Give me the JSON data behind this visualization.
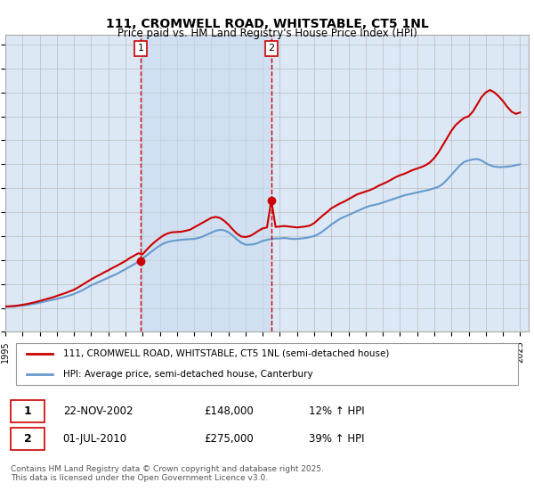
{
  "title": "111, CROMWELL ROAD, WHITSTABLE, CT5 1NL",
  "subtitle": "Price paid vs. HM Land Registry's House Price Index (HPI)",
  "ylim": [
    0,
    620000
  ],
  "yticks": [
    0,
    50000,
    100000,
    150000,
    200000,
    250000,
    300000,
    350000,
    400000,
    450000,
    500000,
    550000,
    600000
  ],
  "xlim_start": 1995.0,
  "xlim_end": 2025.5,
  "background_color": "#ffffff",
  "plot_bg_color": "#dce8f5",
  "grid_color": "#bbbbbb",
  "red_line_color": "#cc0000",
  "blue_line_color": "#6699cc",
  "vline1_x": 2002.896,
  "vline2_x": 2010.496,
  "vline_color": "#cc0000",
  "shade_color": "#c8dcf0",
  "transaction1_date": "22-NOV-2002",
  "transaction1_price": 148000,
  "transaction1_hpi": "12% ↑ HPI",
  "transaction2_date": "01-JUL-2010",
  "transaction2_price": 275000,
  "transaction2_hpi": "39% ↑ HPI",
  "legend_line1": "111, CROMWELL ROAD, WHITSTABLE, CT5 1NL (semi-detached house)",
  "legend_line2": "HPI: Average price, semi-detached house, Canterbury",
  "footer": "Contains HM Land Registry data © Crown copyright and database right 2025.\nThis data is licensed under the Open Government Licence v3.0.",
  "hpi_years": [
    1995.0,
    1995.25,
    1995.5,
    1995.75,
    1996.0,
    1996.25,
    1996.5,
    1996.75,
    1997.0,
    1997.25,
    1997.5,
    1997.75,
    1998.0,
    1998.25,
    1998.5,
    1998.75,
    1999.0,
    1999.25,
    1999.5,
    1999.75,
    2000.0,
    2000.25,
    2000.5,
    2000.75,
    2001.0,
    2001.25,
    2001.5,
    2001.75,
    2002.0,
    2002.25,
    2002.5,
    2002.75,
    2003.0,
    2003.25,
    2003.5,
    2003.75,
    2004.0,
    2004.25,
    2004.5,
    2004.75,
    2005.0,
    2005.25,
    2005.5,
    2005.75,
    2006.0,
    2006.25,
    2006.5,
    2006.75,
    2007.0,
    2007.25,
    2007.5,
    2007.75,
    2008.0,
    2008.25,
    2008.5,
    2008.75,
    2009.0,
    2009.25,
    2009.5,
    2009.75,
    2010.0,
    2010.25,
    2010.5,
    2010.75,
    2011.0,
    2011.25,
    2011.5,
    2011.75,
    2012.0,
    2012.25,
    2012.5,
    2012.75,
    2013.0,
    2013.25,
    2013.5,
    2013.75,
    2014.0,
    2014.25,
    2014.5,
    2014.75,
    2015.0,
    2015.25,
    2015.5,
    2015.75,
    2016.0,
    2016.25,
    2016.5,
    2016.75,
    2017.0,
    2017.25,
    2017.5,
    2017.75,
    2018.0,
    2018.25,
    2018.5,
    2018.75,
    2019.0,
    2019.25,
    2019.5,
    2019.75,
    2020.0,
    2020.25,
    2020.5,
    2020.75,
    2021.0,
    2021.25,
    2021.5,
    2021.75,
    2022.0,
    2022.25,
    2022.5,
    2022.75,
    2023.0,
    2023.25,
    2023.5,
    2023.75,
    2024.0,
    2024.25,
    2024.5,
    2024.75,
    2025.0
  ],
  "hpi_values": [
    52000,
    52500,
    53000,
    54000,
    55000,
    56000,
    57500,
    59000,
    61000,
    63000,
    65000,
    67000,
    69000,
    71000,
    73500,
    76000,
    79000,
    83000,
    87000,
    92000,
    97000,
    101000,
    105000,
    109000,
    113000,
    117000,
    121000,
    126000,
    131000,
    136000,
    141000,
    146000,
    153000,
    160000,
    167000,
    174000,
    180000,
    185000,
    188000,
    190000,
    191000,
    192000,
    193000,
    193500,
    194000,
    196000,
    199000,
    203000,
    207000,
    211000,
    213000,
    212000,
    208000,
    201000,
    193000,
    186000,
    182000,
    182000,
    183000,
    186000,
    190000,
    192000,
    194000,
    195000,
    195000,
    196000,
    195000,
    194000,
    194000,
    195000,
    196000,
    198000,
    200000,
    204000,
    210000,
    217000,
    224000,
    230000,
    236000,
    240000,
    244000,
    248000,
    252000,
    256000,
    260000,
    263000,
    265000,
    267000,
    270000,
    273000,
    276000,
    279000,
    282000,
    285000,
    287000,
    289000,
    291000,
    293000,
    295000,
    297000,
    300000,
    303000,
    309000,
    318000,
    328000,
    338000,
    348000,
    355000,
    358000,
    360000,
    361000,
    358000,
    352000,
    348000,
    345000,
    344000,
    344000,
    345000,
    346000,
    348000,
    350000
  ],
  "property_years": [
    1995.0,
    1995.25,
    1995.5,
    1995.75,
    1996.0,
    1996.25,
    1996.5,
    1996.75,
    1997.0,
    1997.25,
    1997.5,
    1997.75,
    1998.0,
    1998.25,
    1998.5,
    1998.75,
    1999.0,
    1999.25,
    1999.5,
    1999.75,
    2000.0,
    2000.25,
    2000.5,
    2000.75,
    2001.0,
    2001.25,
    2001.5,
    2001.75,
    2002.0,
    2002.25,
    2002.5,
    2002.75,
    2003.0,
    2003.25,
    2003.5,
    2003.75,
    2004.0,
    2004.25,
    2004.5,
    2004.75,
    2005.0,
    2005.25,
    2005.5,
    2005.75,
    2006.0,
    2006.25,
    2006.5,
    2006.75,
    2007.0,
    2007.25,
    2007.5,
    2007.75,
    2008.0,
    2008.25,
    2008.5,
    2008.75,
    2009.0,
    2009.25,
    2009.5,
    2009.75,
    2010.0,
    2010.25,
    2010.5,
    2010.75,
    2011.0,
    2011.25,
    2011.5,
    2011.75,
    2012.0,
    2012.25,
    2012.5,
    2012.75,
    2013.0,
    2013.25,
    2013.5,
    2013.75,
    2014.0,
    2014.25,
    2014.5,
    2014.75,
    2015.0,
    2015.25,
    2015.5,
    2015.75,
    2016.0,
    2016.25,
    2016.5,
    2016.75,
    2017.0,
    2017.25,
    2017.5,
    2017.75,
    2018.0,
    2018.25,
    2018.5,
    2018.75,
    2019.0,
    2019.25,
    2019.5,
    2019.75,
    2020.0,
    2020.25,
    2020.5,
    2020.75,
    2021.0,
    2021.25,
    2021.5,
    2021.75,
    2022.0,
    2022.25,
    2022.5,
    2022.75,
    2023.0,
    2023.25,
    2023.5,
    2023.75,
    2024.0,
    2024.25,
    2024.5,
    2024.75,
    2025.0
  ],
  "property_values": [
    53000,
    53500,
    54000,
    55000,
    56500,
    58000,
    60000,
    62000,
    64500,
    67000,
    69500,
    72000,
    75000,
    78000,
    81000,
    84500,
    88000,
    93000,
    98500,
    104000,
    109500,
    114500,
    119000,
    124000,
    128500,
    133500,
    138000,
    143000,
    148000,
    154000,
    159000,
    164000,
    162000,
    172000,
    181000,
    189000,
    196000,
    202000,
    206000,
    208000,
    208500,
    209000,
    211000,
    213000,
    218000,
    223000,
    228000,
    233000,
    238000,
    240000,
    238000,
    232000,
    224000,
    214000,
    205000,
    199000,
    198000,
    200000,
    205000,
    211000,
    216000,
    218000,
    275000,
    219000,
    220000,
    221000,
    220000,
    219000,
    218000,
    219000,
    220000,
    222000,
    227000,
    235000,
    243000,
    250000,
    258000,
    263000,
    268000,
    272000,
    277000,
    282000,
    287000,
    290000,
    293000,
    296000,
    300000,
    305000,
    309000,
    313000,
    318000,
    323000,
    327000,
    330000,
    334000,
    338000,
    341000,
    344000,
    348000,
    354000,
    363000,
    375000,
    390000,
    405000,
    420000,
    432000,
    440000,
    447000,
    450000,
    460000,
    475000,
    490000,
    500000,
    505000,
    500000,
    492000,
    482000,
    470000,
    460000,
    455000,
    458000
  ],
  "dot1_x": 2002.896,
  "dot1_y": 148000,
  "dot2_x": 2010.496,
  "dot2_y": 275000
}
